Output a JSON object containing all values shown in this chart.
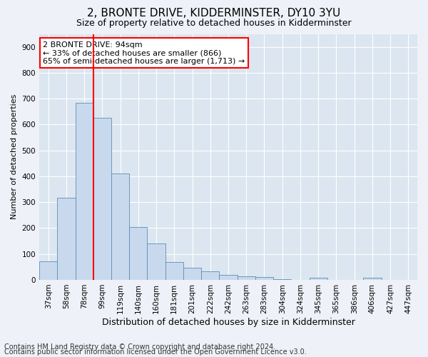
{
  "title": "2, BRONTE DRIVE, KIDDERMINSTER, DY10 3YU",
  "subtitle": "Size of property relative to detached houses in Kidderminster",
  "xlabel": "Distribution of detached houses by size in Kidderminster",
  "ylabel": "Number of detached properties",
  "categories": [
    "37sqm",
    "58sqm",
    "78sqm",
    "99sqm",
    "119sqm",
    "140sqm",
    "160sqm",
    "181sqm",
    "201sqm",
    "222sqm",
    "242sqm",
    "263sqm",
    "283sqm",
    "304sqm",
    "324sqm",
    "345sqm",
    "365sqm",
    "386sqm",
    "406sqm",
    "427sqm",
    "447sqm"
  ],
  "values": [
    72,
    318,
    685,
    625,
    410,
    205,
    140,
    70,
    47,
    33,
    20,
    13,
    10,
    2,
    0,
    8,
    0,
    0,
    7,
    0,
    0
  ],
  "bar_color": "#c9d9ed",
  "bar_edge_color": "#5b8db8",
  "vline_color": "red",
  "annotation_line1": "2 BRONTE DRIVE: 94sqm",
  "annotation_line2": "← 33% of detached houses are smaller (866)",
  "annotation_line3": "65% of semi-detached houses are larger (1,713) →",
  "annotation_box_color": "white",
  "annotation_box_edgecolor": "red",
  "ylim": [
    0,
    950
  ],
  "yticks": [
    0,
    100,
    200,
    300,
    400,
    500,
    600,
    700,
    800,
    900
  ],
  "footer_line1": "Contains HM Land Registry data © Crown copyright and database right 2024.",
  "footer_line2": "Contains public sector information licensed under the Open Government Licence v3.0.",
  "bg_color": "#eef2f8",
  "plot_bg_color": "#dce6f0",
  "grid_color": "white",
  "title_fontsize": 11,
  "subtitle_fontsize": 9,
  "xlabel_fontsize": 9,
  "ylabel_fontsize": 8,
  "tick_fontsize": 7.5,
  "annot_fontsize": 8,
  "footer_fontsize": 7
}
